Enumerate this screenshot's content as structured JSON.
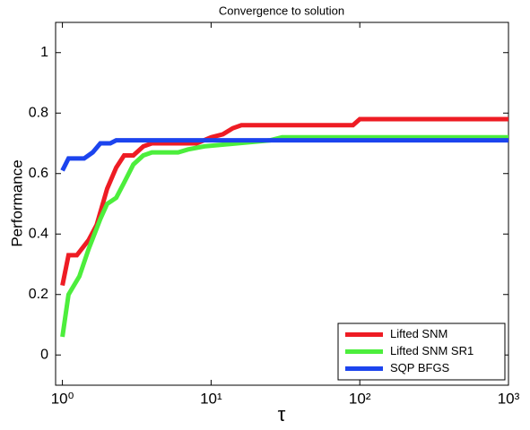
{
  "chart_data": {
    "type": "line",
    "title": "Convergence to solution",
    "x_label": "τ",
    "y_label": "Performance",
    "xscale": "log",
    "xlim": [
      0.9,
      1000
    ],
    "ylim": [
      -0.1,
      1.1
    ],
    "xticks": [
      {
        "value": 1,
        "label": "10⁰"
      },
      {
        "value": 10,
        "label": "10¹"
      },
      {
        "value": 100,
        "label": "10²"
      },
      {
        "value": 1000,
        "label": "10³"
      }
    ],
    "yticks": [
      0,
      0.2,
      0.4,
      0.6,
      0.8,
      1
    ],
    "legend": "lower right",
    "series": [
      {
        "name": "Lifted SNM",
        "color": "#ee1c24",
        "x": [
          1,
          1.1,
          1.25,
          1.5,
          1.7,
          2.0,
          2.3,
          2.6,
          3.0,
          3.5,
          4,
          8,
          10,
          12,
          14,
          16,
          90,
          100,
          1000
        ],
        "values": [
          0.23,
          0.33,
          0.33,
          0.38,
          0.43,
          0.55,
          0.62,
          0.66,
          0.66,
          0.69,
          0.7,
          0.7,
          0.72,
          0.73,
          0.75,
          0.76,
          0.76,
          0.78,
          0.78
        ]
      },
      {
        "name": "Lifted SNM SR1",
        "color": "#4cee3c",
        "x": [
          1,
          1.1,
          1.3,
          1.5,
          1.8,
          2.0,
          2.3,
          2.6,
          3.0,
          3.5,
          4,
          6,
          7,
          9,
          15,
          25,
          30,
          1000
        ],
        "values": [
          0.06,
          0.2,
          0.26,
          0.35,
          0.45,
          0.5,
          0.52,
          0.57,
          0.63,
          0.66,
          0.67,
          0.67,
          0.68,
          0.69,
          0.7,
          0.71,
          0.72,
          0.72
        ]
      },
      {
        "name": "SQP BFGS",
        "color": "#1c44ee",
        "x": [
          1,
          1.1,
          1.4,
          1.6,
          1.8,
          2.1,
          2.3,
          1000
        ],
        "values": [
          0.61,
          0.65,
          0.65,
          0.67,
          0.7,
          0.7,
          0.71,
          0.71
        ]
      }
    ]
  }
}
